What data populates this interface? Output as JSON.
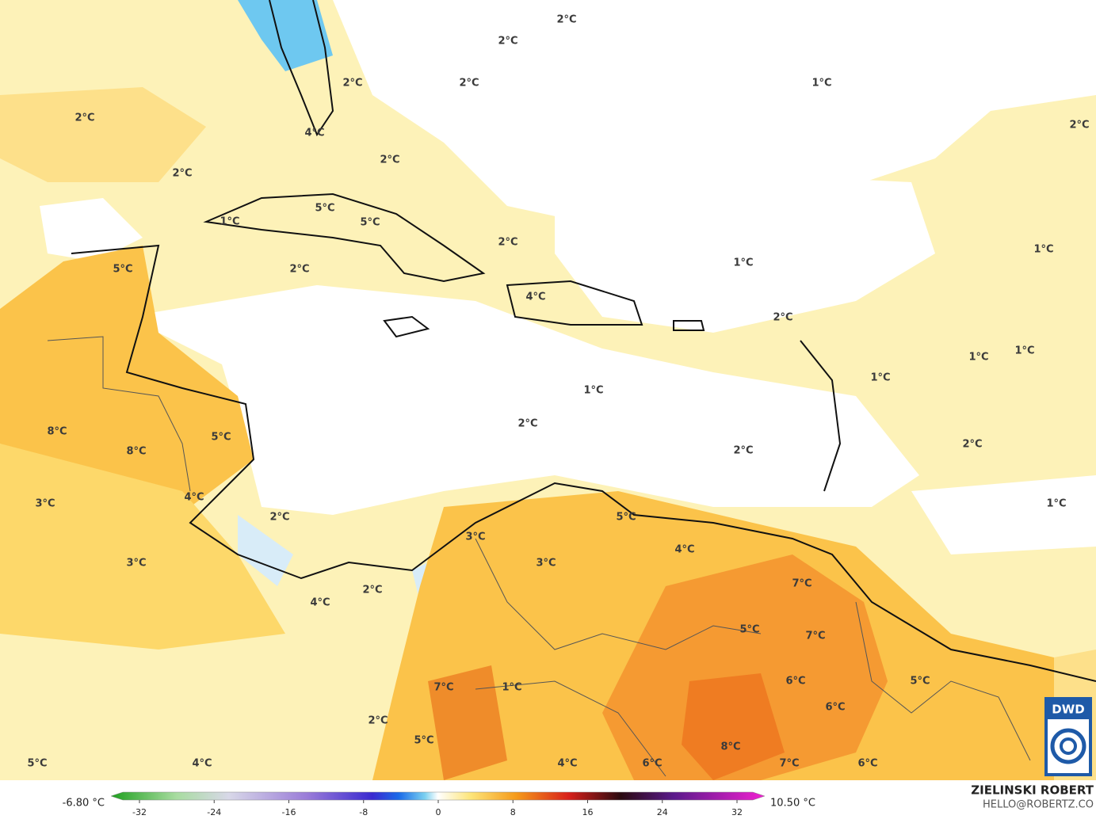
{
  "map": {
    "labels": [
      "2°C",
      "2°C",
      "2°C",
      "2°C",
      "1°C",
      "2°C",
      "4°C",
      "2°C",
      "2°C",
      "2°C",
      "5°C",
      "1°C",
      "5°C",
      "2°C",
      "1°C",
      "1°C",
      "5°C",
      "2°C",
      "4°C",
      "2°C",
      "1°C",
      "1°C",
      "1°C",
      "1°C",
      "2°C",
      "5°C",
      "8°C",
      "8°C",
      "2°C",
      "2°C",
      "4°C",
      "3°C",
      "1°C",
      "2°C",
      "5°C",
      "3°C",
      "4°C",
      "3°C",
      "3°C",
      "2°C",
      "4°C",
      "7°C",
      "5°C",
      "7°C",
      "6°C",
      "5°C",
      "1°C",
      "7°C",
      "6°C",
      "2°C",
      "5°C",
      "8°C",
      "5°C",
      "4°C",
      "4°C",
      "6°C",
      "7°C",
      "6°C"
    ]
  },
  "colorbar": {
    "min_label": "-6.80 °C",
    "max_label": "10.50 °C",
    "ticks": [
      -32,
      -24,
      -16,
      -8,
      0,
      8,
      16,
      24,
      32
    ]
  },
  "credit": {
    "author": "ZIELINSKI ROBERT",
    "contact": "HELLO@ROBERTZ.CO",
    "logo": "DWD"
  }
}
